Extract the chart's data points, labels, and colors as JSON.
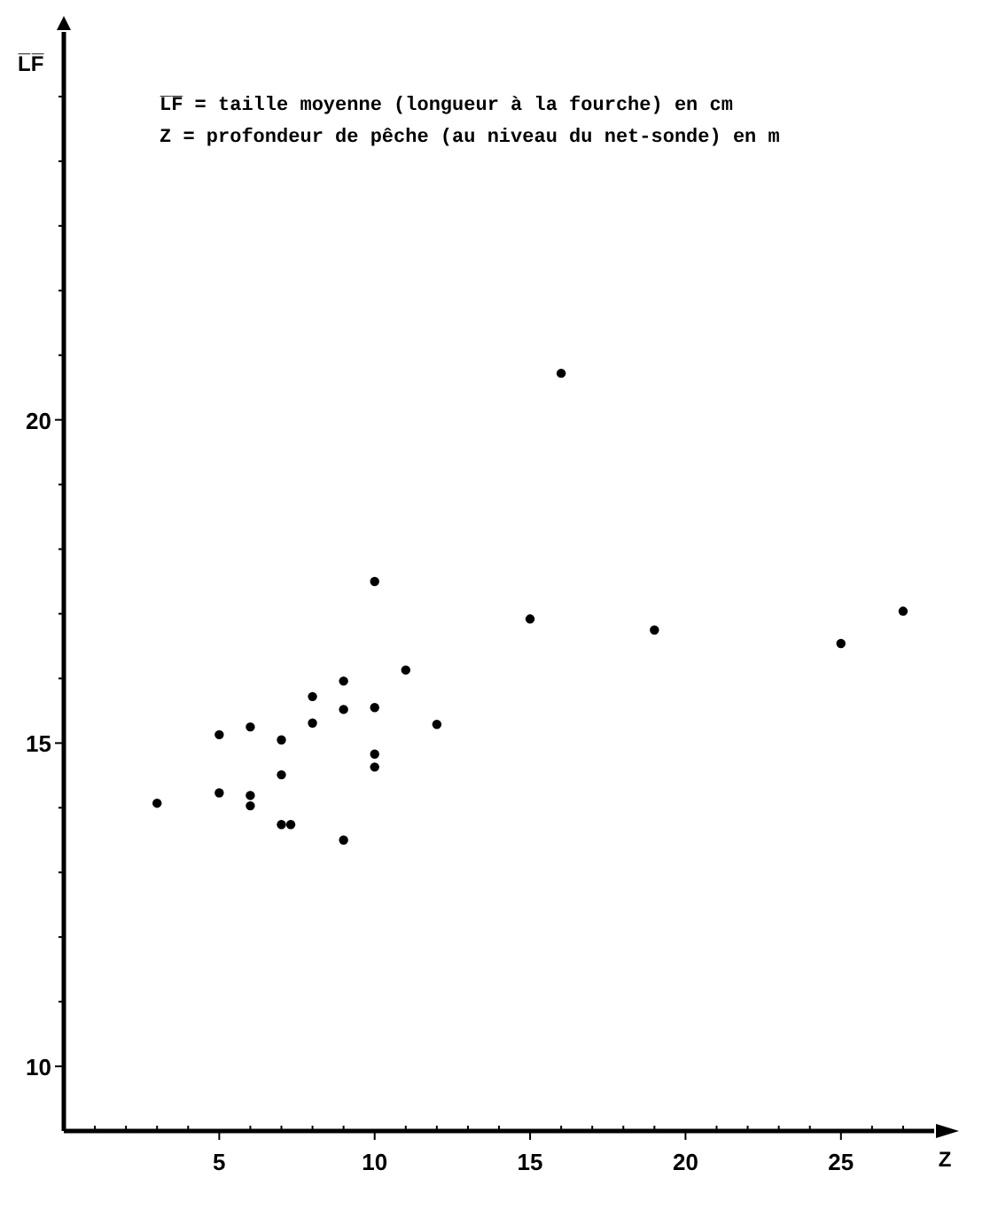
{
  "chart_data": {
    "type": "scatter",
    "xlabel": "Z",
    "ylabel": "L̅F̅",
    "annotations": [
      "L̅F̅ = taille moyenne (longueur à la fourche) en cm",
      "Z = profondeur de pêche (au niveau du net-sonde) en m"
    ],
    "x": [
      3,
      5,
      5,
      6,
      6,
      6,
      7,
      7,
      7,
      7.3,
      8,
      8,
      9,
      9,
      9,
      10,
      10,
      10,
      10,
      11,
      12,
      15,
      16,
      19,
      25,
      27
    ],
    "values": [
      14.07,
      14.23,
      15.13,
      14.19,
      14.03,
      15.25,
      15.05,
      14.51,
      13.74,
      13.74,
      15.72,
      15.31,
      15.96,
      15.52,
      13.5,
      17.5,
      15.55,
      14.83,
      14.63,
      16.13,
      15.29,
      16.92,
      20.72,
      16.75,
      16.54,
      17.04
    ],
    "color": "#000000",
    "marker": "circle",
    "grid": false,
    "xlim": [
      0,
      28
    ],
    "ylim": [
      9,
      26
    ],
    "xticks": [
      {
        "value": 1,
        "label": null
      },
      {
        "value": 2,
        "label": null
      },
      {
        "value": 3,
        "label": null
      },
      {
        "value": 4,
        "label": null
      },
      5,
      {
        "value": 6,
        "label": null
      },
      {
        "value": 7,
        "label": null
      },
      {
        "value": 8,
        "label": null
      },
      {
        "value": 9,
        "label": null
      },
      10,
      {
        "value": 11,
        "label": null
      },
      {
        "value": 12,
        "label": null
      },
      {
        "value": 13,
        "label": null
      },
      {
        "value": 14,
        "label": null
      },
      15,
      {
        "value": 16,
        "label": null
      },
      {
        "value": 17,
        "label": null
      },
      {
        "value": 18,
        "label": null
      },
      {
        "value": 19,
        "label": null
      },
      20,
      {
        "value": 21,
        "label": null
      },
      {
        "value": 22,
        "label": null
      },
      {
        "value": 23,
        "label": null
      },
      {
        "value": 24,
        "label": null
      },
      25,
      {
        "value": 26,
        "label": null
      },
      {
        "value": 27,
        "label": null
      }
    ],
    "yticks": [
      10,
      {
        "value": 11,
        "label": null
      },
      {
        "value": 12,
        "label": null
      },
      {
        "value": 13,
        "label": null
      },
      {
        "value": 14,
        "label": null
      },
      15,
      {
        "value": 16,
        "label": null
      },
      {
        "value": 17,
        "label": null
      },
      {
        "value": 18,
        "label": null
      },
      {
        "value": 19,
        "label": null
      },
      20,
      {
        "value": 21,
        "label": null
      },
      {
        "value": 22,
        "label": null
      },
      {
        "value": 23,
        "label": null
      },
      {
        "value": 24,
        "label": null
      },
      {
        "value": 25,
        "label": null
      }
    ]
  }
}
